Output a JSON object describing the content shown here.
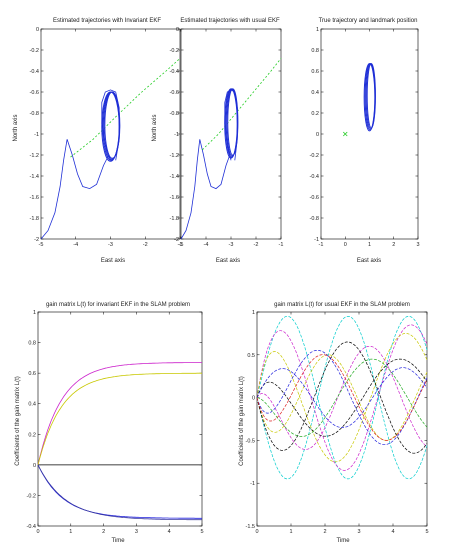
{
  "figure": {
    "panels": [
      {
        "title": "Estimated trajectories with Invariant EKF",
        "xlabel": "East axis",
        "ylabel": "North axis"
      },
      {
        "title": "Estimated trajectories with usual EKF",
        "xlabel": "East axis",
        "ylabel": "North axis"
      },
      {
        "title": "True trajectory and landmark position",
        "xlabel": "East axis",
        "ylabel": ""
      },
      {
        "title": "gain matrix L(t) for invariant EKF in the SLAM problem",
        "xlabel": "Time",
        "ylabel": "Coefficients of the gain matrix L(t)"
      },
      {
        "title": "gain matrix L(t) for usual EKF in the SLAM problem",
        "xlabel": "Time",
        "ylabel": "Coefficients of the gain matrix L(t)"
      }
    ]
  },
  "chart_data": [
    {
      "type": "line",
      "title": "Estimated trajectories with Invariant EKF",
      "xlabel": "East axis",
      "ylabel": "North axis",
      "xlim": [
        -5,
        -1
      ],
      "ylim": [
        -2,
        0
      ],
      "xticks": [
        -5,
        -4,
        -3,
        -2,
        -1
      ],
      "yticks": [
        -2,
        -1.8,
        -1.6,
        -1.4,
        -1.2,
        -1,
        -0.8,
        -0.6,
        -0.4,
        -0.2,
        0
      ],
      "series": [
        {
          "color": "#1f2fd6",
          "style": "solid",
          "x": [
            -5,
            -4.8,
            -4.6,
            -4.45,
            -4.35,
            -4.25,
            -4.1,
            -3.95,
            -3.8,
            -3.6,
            -3.4,
            -3.2,
            -3.05,
            -3,
            -3.15,
            -3.25,
            -3.25,
            -3.15,
            -3,
            -2.85,
            -2.75,
            -2.75,
            -2.85
          ],
          "y": [
            -2,
            -1.92,
            -1.75,
            -1.5,
            -1.25,
            -1.05,
            -1.2,
            -1.38,
            -1.5,
            -1.52,
            -1.48,
            -1.3,
            -1.2,
            -1.25,
            -1.1,
            -0.9,
            -0.7,
            -0.6,
            -0.58,
            -0.6,
            -0.75,
            -1.05,
            -1.25
          ]
        },
        {
          "color": "#22cc22",
          "style": "dashed",
          "x": [
            -4.15,
            -3.5,
            -2.8,
            -2.1,
            -1.4,
            -1
          ],
          "y": [
            -1.22,
            -1.05,
            -0.82,
            -0.6,
            -0.4,
            -0.28
          ]
        }
      ],
      "ellipse": {
        "cx": -3,
        "cy": -0.93,
        "rx": 0.25,
        "ry": 0.33
      }
    },
    {
      "type": "line",
      "title": "Estimated trajectories with usual EKF",
      "xlabel": "East axis",
      "ylabel": "North axis",
      "xlim": [
        -5,
        -1
      ],
      "ylim": [
        -2,
        0
      ],
      "xticks": [
        -5,
        -4,
        -3,
        -2,
        -1
      ],
      "yticks": [
        -2,
        -1.8,
        -1.6,
        -1.4,
        -1.2,
        -1,
        -0.8,
        -0.6,
        -0.4,
        -0.2,
        0
      ],
      "series": [
        {
          "color": "#1f2fd6",
          "style": "solid",
          "x": [
            -5,
            -4.8,
            -4.6,
            -4.45,
            -4.35,
            -4.25,
            -4.1,
            -3.95,
            -3.8,
            -3.6,
            -3.4,
            -3.2,
            -3.05,
            -3,
            -3.15,
            -3.25,
            -3.25,
            -3.15,
            -3,
            -2.85,
            -2.75,
            -2.75,
            -2.85
          ],
          "y": [
            -2,
            -1.92,
            -1.75,
            -1.5,
            -1.25,
            -1.05,
            -1.2,
            -1.38,
            -1.5,
            -1.52,
            -1.48,
            -1.3,
            -1.2,
            -1.25,
            -1.1,
            -0.9,
            -0.7,
            -0.6,
            -0.58,
            -0.6,
            -0.75,
            -1.05,
            -1.25
          ]
        },
        {
          "color": "#22cc22",
          "style": "dashed",
          "x": [
            -4.15,
            -3.5,
            -2.8,
            -2.1,
            -1.4,
            -1
          ],
          "y": [
            -1.15,
            -1.0,
            -0.8,
            -0.6,
            -0.4,
            -0.28
          ]
        }
      ],
      "ellipse": {
        "cx": -3,
        "cy": -0.9,
        "rx": 0.25,
        "ry": 0.33
      }
    },
    {
      "type": "scatter",
      "title": "True trajectory and landmark position",
      "xlabel": "East axis",
      "ylabel": "",
      "xlim": [
        -1,
        3
      ],
      "ylim": [
        -1,
        1
      ],
      "xticks": [
        -1,
        0,
        1,
        2,
        3
      ],
      "yticks": [
        -1,
        -0.8,
        -0.6,
        -0.4,
        -0.2,
        0,
        0.2,
        0.4,
        0.6,
        0.8,
        1
      ],
      "landmark": {
        "x": 0,
        "y": 0,
        "marker": "x",
        "color": "#22cc22"
      },
      "ellipse": {
        "cx": 1,
        "cy": 0.35,
        "rx": 0.22,
        "ry": 0.32,
        "color": "#1f2fd6"
      }
    },
    {
      "type": "line",
      "title": "gain matrix L(t) for invariant EKF in the SLAM problem",
      "xlabel": "Time",
      "ylabel": "Coefficients of the gain matrix L(t)",
      "xlim": [
        0,
        5
      ],
      "ylim": [
        -0.4,
        1
      ],
      "xticks": [
        0,
        1,
        2,
        3,
        4,
        5
      ],
      "yticks": [
        -0.4,
        -0.2,
        0,
        0.2,
        0.4,
        0.6,
        0.8,
        1
      ],
      "series": [
        {
          "color": "#cc22cc",
          "final": 0.67,
          "rate": 1.4
        },
        {
          "color": "#c8c800",
          "final": 0.6,
          "rate": 1.4
        },
        {
          "color": "#000000",
          "final": 0.0,
          "rate": 1.4
        },
        {
          "color": "#2222dd",
          "final": -0.35,
          "rate": 1.3
        },
        {
          "color": "#3a3aa0",
          "final": -0.36,
          "rate": 1.2
        }
      ]
    },
    {
      "type": "line",
      "title": "gain matrix L(t) for usual EKF in the SLAM problem",
      "xlabel": "Time",
      "ylabel": "Coefficients of the gain matrix L(t)",
      "xlim": [
        0,
        5
      ],
      "ylim": [
        -1.5,
        1
      ],
      "xticks": [
        0,
        1,
        2,
        3,
        4,
        5
      ],
      "yticks": [
        -1.5,
        -1,
        -0.5,
        0,
        0.5,
        1
      ],
      "series": [
        {
          "color": "#00cccc",
          "amp": 0.95,
          "freq": 1.1,
          "phase": 0.0
        },
        {
          "color": "#00cccc",
          "amp": 0.95,
          "freq": 1.1,
          "phase": 3.14
        },
        {
          "color": "#cc22cc",
          "amp": 0.85,
          "freq": 1.0,
          "phase": 0.6
        },
        {
          "color": "#cc22cc",
          "amp": 0.6,
          "freq": 1.05,
          "phase": 2.3
        },
        {
          "color": "#c8c800",
          "amp": 0.75,
          "freq": 0.95,
          "phase": 1.2
        },
        {
          "color": "#c8c800",
          "amp": 0.5,
          "freq": 1.15,
          "phase": 4.0
        },
        {
          "color": "#000000",
          "amp": 0.65,
          "freq": 1.0,
          "phase": 3.6
        },
        {
          "color": "#000000",
          "amp": 0.45,
          "freq": 0.9,
          "phase": 1.8
        },
        {
          "color": "#2222dd",
          "amp": 0.55,
          "freq": 1.0,
          "phase": 5.0
        },
        {
          "color": "#2222dd",
          "amp": 0.35,
          "freq": 1.1,
          "phase": 0.3
        },
        {
          "color": "#22aa22",
          "amp": 0.45,
          "freq": 0.95,
          "phase": 2.7
        },
        {
          "color": "#dd2222",
          "amp": 0.5,
          "freq": 1.05,
          "phase": 4.6
        }
      ]
    }
  ]
}
